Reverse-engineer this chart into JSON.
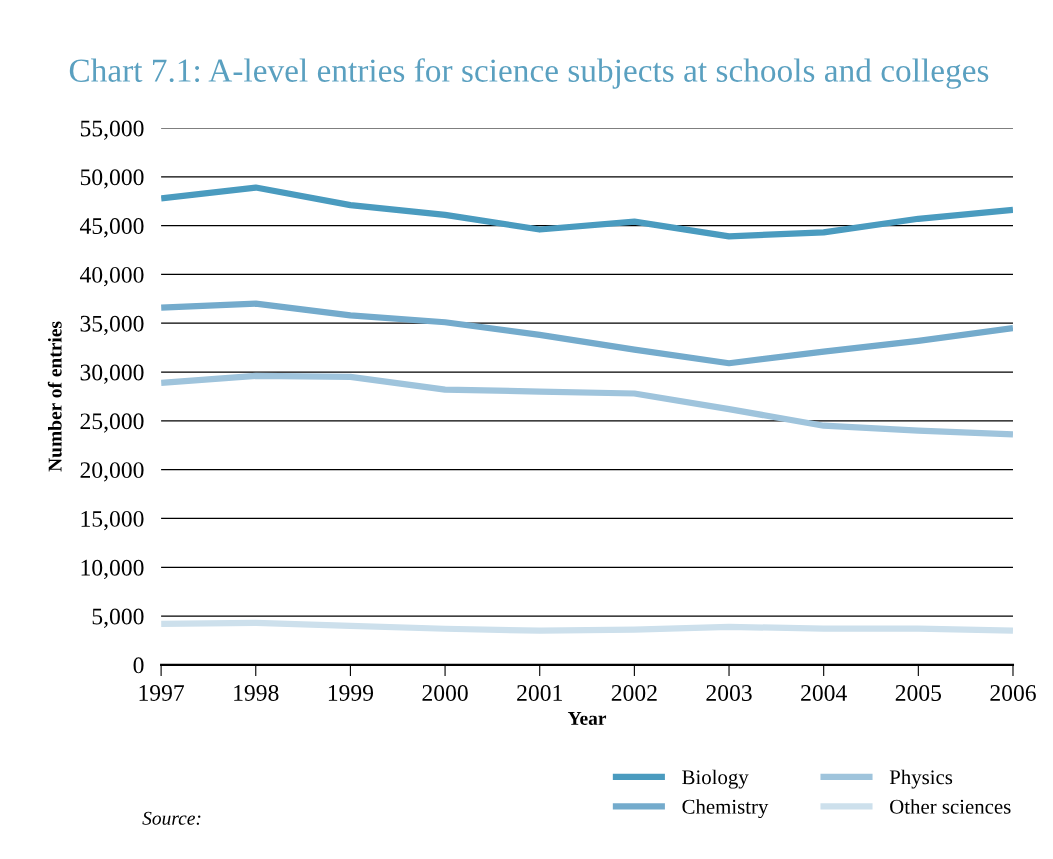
{
  "chart_data": {
    "type": "line",
    "title": "Chart 7.1: A-level entries for science subjects at schools and colleges",
    "xlabel": "Year",
    "ylabel": "Number of entries",
    "x": [
      1997,
      1998,
      1999,
      2000,
      2001,
      2002,
      2003,
      2004,
      2005,
      2006
    ],
    "series": [
      {
        "name": "Biology",
        "color": "#4a9bbf",
        "values": [
          47800,
          48900,
          47100,
          46100,
          44600,
          45400,
          43900,
          44300,
          45700,
          46600
        ]
      },
      {
        "name": "Chemistry",
        "color": "#74abcc",
        "values": [
          36600,
          37000,
          35800,
          35100,
          33800,
          32300,
          30900,
          32100,
          33200,
          34500
        ]
      },
      {
        "name": "Physics",
        "color": "#9fc4dc",
        "values": [
          28900,
          29600,
          29500,
          28200,
          28000,
          27800,
          26200,
          24500,
          24000,
          23600
        ]
      },
      {
        "name": "Other sciences",
        "color": "#cde0ec",
        "values": [
          4200,
          4300,
          4000,
          3700,
          3500,
          3600,
          3900,
          3700,
          3700,
          3500
        ]
      }
    ],
    "xlim": [
      1997,
      2006
    ],
    "xticks": [
      1997,
      1998,
      1999,
      2000,
      2001,
      2002,
      2003,
      2004,
      2005,
      2006
    ],
    "ylim": [
      0,
      55000
    ],
    "yticks": [
      {
        "value": 0,
        "label": "0"
      },
      {
        "value": 5000,
        "label": "5,000"
      },
      {
        "value": 10000,
        "label": "10,000"
      },
      {
        "value": 15000,
        "label": "15,000"
      },
      {
        "value": 20000,
        "label": "20,000"
      },
      {
        "value": 25000,
        "label": "25,000"
      },
      {
        "value": 30000,
        "label": "30,000"
      },
      {
        "value": 35000,
        "label": "35,000"
      },
      {
        "value": 40000,
        "label": "40,000"
      },
      {
        "value": 45000,
        "label": "45,000"
      },
      {
        "value": 50000,
        "label": "50,000"
      },
      {
        "value": 55000,
        "label": "55,000"
      }
    ],
    "grid": "y",
    "legend": "bottom right",
    "marker": "none",
    "line_style": "solid",
    "annotations": [
      "Source:"
    ]
  }
}
